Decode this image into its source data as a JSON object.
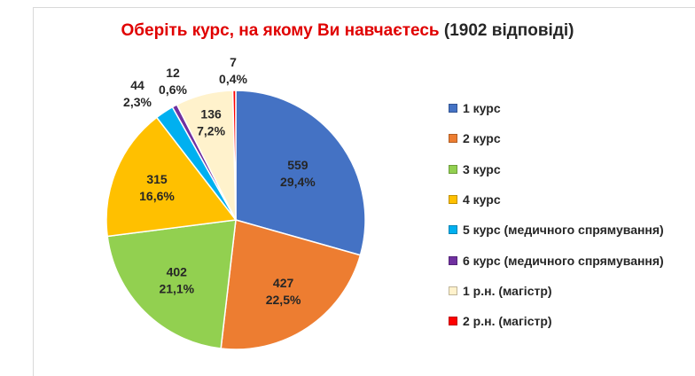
{
  "chart_data": {
    "type": "pie",
    "title": "Оберіть курс, на якому Ви навчаєтесь",
    "subtitle": "(1902 відповіді)",
    "total": 1902,
    "legend_position": "right",
    "slices": [
      {
        "label": "1 курс",
        "value": 559,
        "percent": "29,4%",
        "color": "#4472c4"
      },
      {
        "label": "2 курс",
        "value": 427,
        "percent": "22,5%",
        "color": "#ed7d31"
      },
      {
        "label": "3 курс",
        "value": 402,
        "percent": "21,1%",
        "color": "#92d050"
      },
      {
        "label": "4 курс",
        "value": 315,
        "percent": "16,6%",
        "color": "#ffc000"
      },
      {
        "label": "5 курс (медичного спрямування)",
        "value": 44,
        "percent": "2,3%",
        "color": "#00b0f0"
      },
      {
        "label": "6 курс (медичного спрямування)",
        "value": 12,
        "percent": "0,6%",
        "color": "#7030a0"
      },
      {
        "label": "1 р.н. (магістр)",
        "value": 136,
        "percent": "7,2%",
        "color": "#fff2cc"
      },
      {
        "label": "2 р.н. (магістр)",
        "value": 7,
        "percent": "0,4%",
        "color": "#ff0000"
      }
    ]
  }
}
